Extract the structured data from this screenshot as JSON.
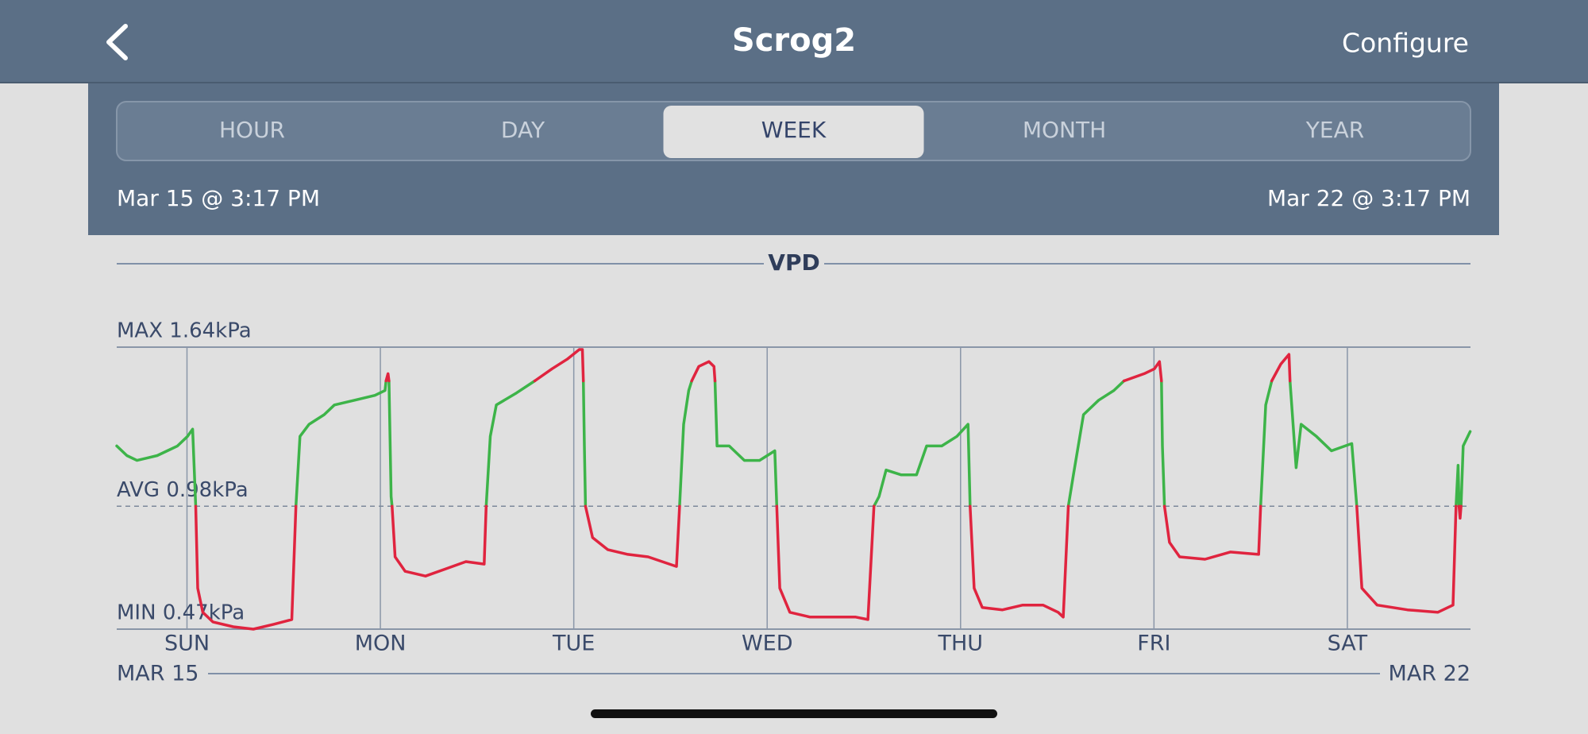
{
  "header": {
    "title": "Scrog2",
    "action": "Configure"
  },
  "tabs": [
    {
      "label": "HOUR",
      "selected": false
    },
    {
      "label": "DAY",
      "selected": false
    },
    {
      "label": "WEEK",
      "selected": true
    },
    {
      "label": "MONTH",
      "selected": false
    },
    {
      "label": "YEAR",
      "selected": false
    }
  ],
  "range": {
    "start": "Mar 15 @ 3:17 PM",
    "end": "Mar 22 @ 3:17 PM"
  },
  "chart_data": {
    "type": "line",
    "title": "VPD",
    "x": [
      0,
      1.26,
      2.51,
      3.77,
      5.03,
      6.28,
      7.54,
      8.79,
      9.42,
      9.8,
      10.05,
      10.68,
      11.93,
      14.45,
      16.96,
      19.47,
      21.73,
      22.24,
      22.74,
      23.87,
      25.75,
      27.01,
      29.52,
      32.04,
      33.29,
      33.42,
      33.67,
      33.79,
      34.05,
      34.17,
      34.55,
      35.8,
      38.32,
      40.83,
      43.34,
      45.6,
      45.85,
      46.36,
      47.11,
      49.62,
      51.88,
      54.02,
      55.9,
      57.41,
      57.79,
      57.91,
      58.04,
      58.17,
      59.05,
      60.93,
      63.44,
      65.95,
      69.47,
      69.85,
      70.35,
      70.98,
      71.36,
      72.24,
      73.49,
      74.12,
      74.25,
      74.5,
      76.01,
      77.89,
      79.77,
      81.66,
      81.91,
      82.29,
      83.54,
      86.06,
      88.57,
      91.71,
      93.22,
      93.97,
      94.6,
      95.48,
      97.36,
      99.25,
      100.5,
      102.39,
      104.27,
      105.65,
      105.9,
      106.41,
      107.41,
      109.92,
      112.44,
      114.95,
      116.83,
      117.46,
      118.09,
      118.72,
      119.97,
      121.86,
      123.74,
      125.0,
      127.51,
      128.77,
      129.4,
      129.65,
      129.77,
      130.03,
      130.65,
      131.91,
      135.05,
      138.19,
      141.71,
      141.96,
      142.59,
      143.34,
      144.47,
      145.48,
      145.6,
      146.36,
      146.98,
      148.87,
      150.75,
      153.27,
      153.89,
      154.52,
      156.41,
      160.18,
      163.94,
      165.83,
      166.21,
      166.46,
      166.58,
      166.71,
      166.83,
      167.09,
      167.96
    ],
    "series": [
      {
        "color": "#3db449",
        "values": [
          1.23,
          1.19,
          1.17,
          1.18,
          1.19,
          1.21,
          1.23,
          1.27,
          1.3,
          0.98,
          null,
          null,
          null,
          null,
          null,
          null,
          null,
          0.98,
          1.27,
          1.32,
          1.36,
          1.4,
          1.42,
          1.44,
          1.46,
          1.5,
          null,
          1.5,
          1.02,
          0.98,
          null,
          null,
          null,
          null,
          null,
          null,
          0.98,
          1.27,
          1.4,
          1.45,
          1.5,
          null,
          null,
          null,
          null,
          1.5,
          1.23,
          0.98,
          null,
          null,
          null,
          null,
          null,
          0.98,
          1.32,
          1.46,
          1.5,
          null,
          null,
          null,
          1.5,
          1.23,
          1.23,
          1.17,
          1.17,
          1.21,
          0.98,
          null,
          null,
          null,
          null,
          null,
          null,
          0.98,
          1.02,
          1.13,
          1.11,
          1.11,
          1.23,
          1.23,
          1.27,
          1.32,
          0.98,
          null,
          null,
          null,
          null,
          null,
          null,
          null,
          0.98,
          1.11,
          1.36,
          1.42,
          1.46,
          1.5,
          null,
          null,
          null,
          1.5,
          1.23,
          0.98,
          null,
          null,
          null,
          null,
          null,
          0.98,
          1.4,
          1.5,
          null,
          null,
          1.5,
          1.14,
          1.32,
          1.27,
          1.21,
          1.24,
          0.98,
          null,
          null,
          null,
          null,
          null,
          0.98,
          1.15,
          0.98,
          null,
          0.98,
          1.23,
          1.29
        ]
      },
      {
        "color": "#e0243f",
        "values": [
          null,
          null,
          null,
          null,
          null,
          null,
          null,
          null,
          null,
          0.98,
          0.64,
          0.54,
          0.5,
          0.48,
          0.47,
          0.49,
          0.51,
          0.98,
          null,
          null,
          null,
          null,
          null,
          null,
          null,
          1.5,
          1.53,
          1.5,
          null,
          0.98,
          0.77,
          0.71,
          0.69,
          0.72,
          0.75,
          0.74,
          0.98,
          null,
          null,
          null,
          1.5,
          1.55,
          1.59,
          1.63,
          1.63,
          1.5,
          null,
          0.98,
          0.85,
          0.8,
          0.78,
          0.77,
          0.73,
          0.98,
          null,
          null,
          1.5,
          1.56,
          1.58,
          1.56,
          1.5,
          null,
          null,
          null,
          null,
          null,
          0.98,
          0.64,
          0.54,
          0.52,
          0.52,
          0.52,
          0.51,
          0.98,
          null,
          null,
          null,
          null,
          null,
          null,
          null,
          null,
          0.98,
          0.64,
          0.56,
          0.55,
          0.57,
          0.57,
          0.54,
          0.52,
          0.98,
          null,
          null,
          null,
          null,
          1.5,
          1.53,
          1.55,
          1.58,
          1.5,
          null,
          0.98,
          0.83,
          0.77,
          0.76,
          0.79,
          0.78,
          0.98,
          null,
          1.5,
          1.57,
          1.61,
          1.5,
          null,
          null,
          null,
          null,
          null,
          0.98,
          0.64,
          0.57,
          0.55,
          0.54,
          0.57,
          0.98,
          null,
          0.98,
          0.93,
          0.98,
          null,
          null
        ]
      }
    ],
    "xlim": [
      0,
      168
    ],
    "xticks": [
      {
        "value": 8.72,
        "label": "SUN"
      },
      {
        "value": 32.72,
        "label": "MON"
      },
      {
        "value": 56.72,
        "label": "TUE"
      },
      {
        "value": 80.72,
        "label": "WED"
      },
      {
        "value": 104.72,
        "label": "THU"
      },
      {
        "value": 128.72,
        "label": "FRI"
      },
      {
        "value": 152.72,
        "label": "SAT"
      }
    ],
    "ylim": [
      0.47,
      1.64
    ],
    "yticks": [
      {
        "value": 1.64,
        "label": "MAX 1.64kPa"
      },
      {
        "value": 0.98,
        "label": "AVG 0.98kPa"
      },
      {
        "value": 0.47,
        "label": "MIN 0.47kPa"
      }
    ],
    "range_labels": [
      "MAR 15",
      "MAR 22"
    ]
  }
}
